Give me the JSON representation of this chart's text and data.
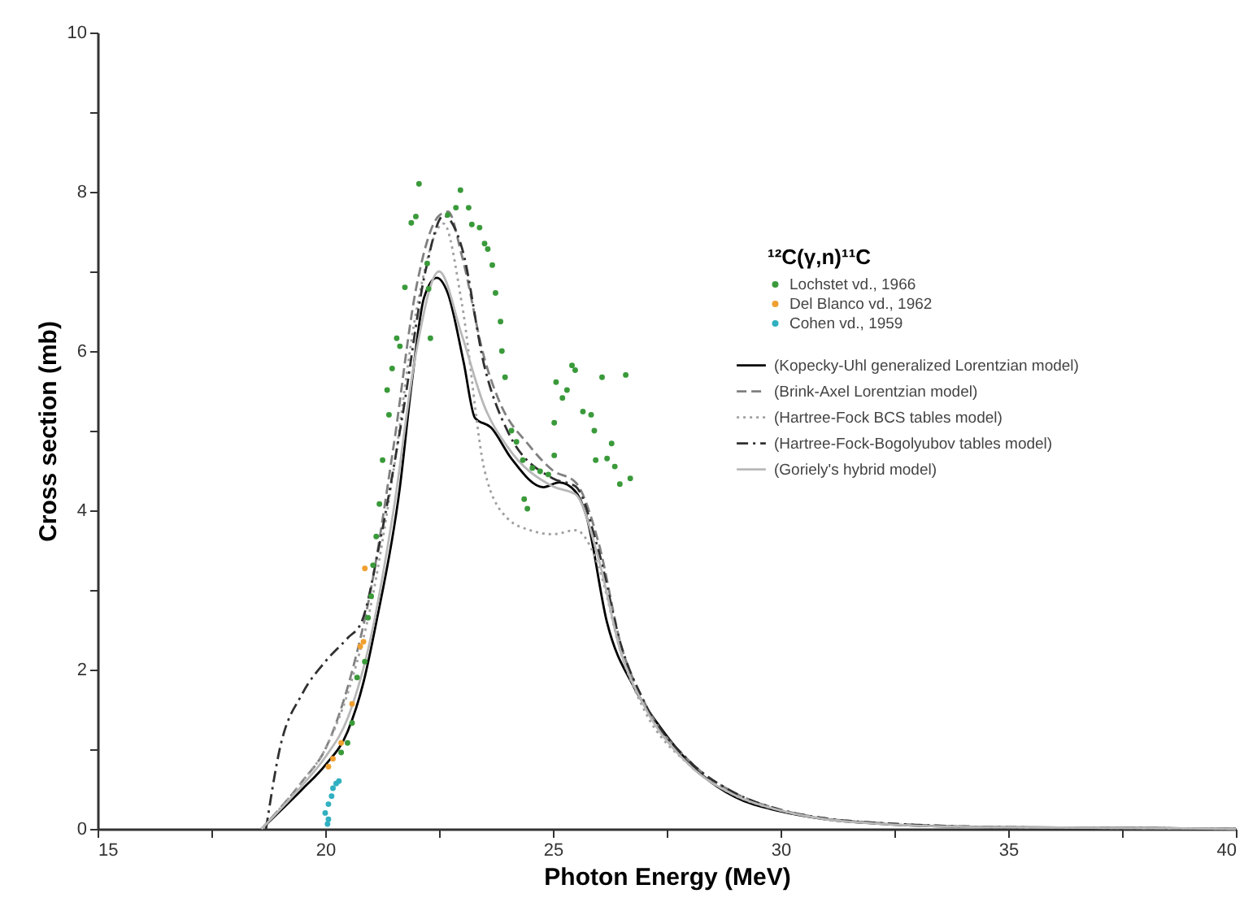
{
  "chart_data": {
    "type": "line",
    "xlabel": "Photon Energy (MeV)",
    "ylabel": "Cross section (mb)",
    "legend_title": "¹²C(γ,n)¹¹C",
    "legend": "right",
    "xlim": [
      15,
      40
    ],
    "xticks": [
      15,
      {
        "value": 17.5,
        "label": null
      },
      20,
      {
        "value": 22.5,
        "label": null
      },
      25,
      {
        "value": 27.5,
        "label": null
      },
      30,
      {
        "value": 32.5,
        "label": null
      },
      35,
      {
        "value": 37.5,
        "label": null
      },
      40
    ],
    "ylim": [
      0,
      10
    ],
    "yticks": [
      0,
      {
        "value": 1,
        "label": null
      },
      2,
      {
        "value": 3,
        "label": null
      },
      4,
      {
        "value": 5,
        "label": null
      },
      6,
      {
        "value": 7,
        "label": null
      },
      8,
      {
        "value": 9,
        "label": null
      },
      10
    ],
    "series": [
      {
        "name": "Lochstet vd., 1966",
        "type": "scatter",
        "marker": "circle",
        "color": "#3a9a3a",
        "x": [
          22.06,
          22.97,
          21.89,
          21.99,
          22.69,
          22.87,
          23.15,
          23.22,
          23.39,
          23.5,
          23.57,
          23.67,
          23.74,
          21.75,
          22.27,
          22.24,
          23.85,
          21.57,
          21.64,
          21.47,
          22.31,
          23.88,
          23.95,
          21.36,
          21.4,
          21.26,
          21.19,
          21.12,
          21.05,
          24.09,
          24.2,
          24.34,
          24.55,
          24.72,
          24.9,
          24.37,
          24.44,
          25.03,
          25.07,
          25.21,
          25.31,
          25.42,
          25.49,
          25.03,
          25.66,
          25.84,
          25.91,
          26.08,
          25.94,
          26.19,
          26.29,
          26.36,
          26.47,
          26.6,
          26.7,
          21.01,
          20.94,
          20.87,
          20.7,
          20.59,
          20.49,
          20.35
        ],
        "values": [
          8.1,
          8.02,
          7.61,
          7.69,
          7.71,
          7.8,
          7.8,
          7.59,
          7.55,
          7.35,
          7.28,
          7.08,
          6.73,
          6.8,
          6.78,
          7.1,
          6.37,
          6.16,
          6.06,
          5.78,
          6.16,
          6.0,
          5.67,
          5.51,
          5.2,
          4.63,
          4.08,
          3.67,
          3.31,
          5.0,
          4.86,
          4.63,
          4.53,
          4.49,
          4.45,
          4.14,
          4.02,
          5.1,
          5.61,
          5.41,
          5.51,
          5.82,
          5.76,
          4.69,
          5.24,
          5.2,
          5.0,
          5.67,
          4.63,
          4.65,
          4.84,
          4.55,
          4.33,
          5.7,
          4.4,
          2.92,
          2.65,
          2.1,
          1.9,
          1.33,
          1.08,
          0.96
        ]
      },
      {
        "name": "Del Blanco vd., 1962",
        "type": "scatter",
        "marker": "circle",
        "color": "#f0a030",
        "x": [
          20.87,
          20.84,
          20.77,
          20.59,
          20.35,
          20.17,
          20.07
        ],
        "values": [
          3.27,
          2.35,
          2.29,
          1.57,
          1.08,
          0.88,
          0.78
        ]
      },
      {
        "name": "Cohen vd., 1959",
        "type": "scatter",
        "marker": "circle",
        "color": "#30b0c0",
        "x": [
          20.24,
          20.17,
          20.14,
          20.07,
          20.0,
          20.3,
          20.07,
          20.05
        ],
        "values": [
          0.57,
          0.51,
          0.41,
          0.31,
          0.2,
          0.6,
          0.12,
          0.06
        ]
      },
      {
        "name": "(Kopecky-Uhl generalized Lorentzian model)",
        "line_style": "solid",
        "color": "#000000",
        "x": [
          18.6,
          19.5,
          20.0,
          20.49,
          20.84,
          21.12,
          21.64,
          21.9,
          22.17,
          22.45,
          22.69,
          23.04,
          23.29,
          23.64,
          24.09,
          24.79,
          25.14,
          25.49,
          25.73,
          26.19,
          26.78,
          27.34,
          28.29,
          29,
          30,
          31,
          32,
          33,
          35,
          38,
          40
        ],
        "values": [
          0,
          0.5,
          0.8,
          1.22,
          1.84,
          2.59,
          4.29,
          5.6,
          6.67,
          6.92,
          6.73,
          5.86,
          5.16,
          5.04,
          4.65,
          4.29,
          4.35,
          4.24,
          3.94,
          2.59,
          1.78,
          1.29,
          0.67,
          0.4,
          0.22,
          0.12,
          0.07,
          0.04,
          0.02,
          0.01,
          0
        ]
      },
      {
        "name": "(Brink-Axel Lorentzian model)",
        "line_style": "dashed",
        "color": "#808080",
        "x": [
          18.6,
          19.5,
          20.0,
          20.6,
          21.0,
          21.5,
          22.0,
          22.5,
          22.7,
          23.0,
          23.5,
          23.8,
          24.5,
          25.0,
          25.5,
          26.0,
          26.5,
          27.0,
          28.0,
          29,
          30,
          31,
          32,
          33,
          35,
          38,
          40
        ],
        "values": [
          0,
          0.6,
          1.0,
          2.0,
          3.0,
          4.8,
          6.8,
          7.7,
          7.75,
          7.2,
          5.9,
          5.4,
          4.8,
          4.5,
          4.35,
          3.6,
          2.3,
          1.6,
          0.85,
          0.45,
          0.24,
          0.13,
          0.08,
          0.05,
          0.02,
          0.01,
          0
        ]
      },
      {
        "name": "(Hartree-Fock BCS tables model)",
        "line_style": "dotted",
        "color": "#a0a0a0",
        "x": [
          18.6,
          19.5,
          20.0,
          20.6,
          21.0,
          21.5,
          22.0,
          22.6,
          23.0,
          23.5,
          24.0,
          24.5,
          25.0,
          25.5,
          26.0,
          26.5,
          27.0,
          28.0,
          29,
          30,
          31,
          32,
          33,
          35,
          38,
          40
        ],
        "values": [
          0,
          0.6,
          1.0,
          1.9,
          2.8,
          4.5,
          6.5,
          7.6,
          6.6,
          4.5,
          3.9,
          3.75,
          3.7,
          3.75,
          3.3,
          2.2,
          1.5,
          0.8,
          0.42,
          0.23,
          0.12,
          0.07,
          0.04,
          0.02,
          0.01,
          0
        ]
      },
      {
        "name": "(Hartree-Fock-Bogolyubov tables model)",
        "line_style": "dashdot",
        "color": "#303030",
        "x": [
          18.7,
          19.0,
          19.5,
          20.0,
          20.5,
          20.8,
          21.2,
          21.7,
          22.2,
          22.6,
          23.0,
          23.5,
          24.0,
          25.0,
          25.5,
          26.0,
          26.5,
          27.0,
          28.0,
          29,
          30,
          31,
          32,
          33,
          35,
          38,
          40
        ],
        "values": [
          0,
          1.0,
          1.7,
          2.1,
          2.4,
          2.6,
          3.6,
          5.2,
          7.0,
          7.7,
          7.3,
          5.8,
          5.0,
          4.4,
          4.3,
          3.5,
          2.3,
          1.6,
          0.85,
          0.45,
          0.24,
          0.13,
          0.08,
          0.05,
          0.02,
          0.01,
          0
        ]
      },
      {
        "name": "(Goriely's hybrid model)",
        "line_style": "solid",
        "color": "#b8b8b8",
        "x": [
          18.6,
          19.5,
          20.0,
          20.5,
          21.0,
          21.5,
          22.0,
          22.5,
          23.0,
          23.5,
          24.0,
          25.0,
          25.5,
          26.0,
          26.5,
          27.0,
          28.0,
          29,
          30,
          31,
          32,
          33,
          35,
          38,
          40
        ],
        "values": [
          0,
          0.55,
          0.9,
          1.4,
          2.4,
          4.0,
          6.0,
          7.0,
          6.2,
          5.3,
          4.8,
          4.3,
          4.2,
          3.4,
          2.2,
          1.55,
          0.8,
          0.42,
          0.23,
          0.12,
          0.07,
          0.04,
          0.02,
          0.01,
          0
        ]
      }
    ]
  }
}
